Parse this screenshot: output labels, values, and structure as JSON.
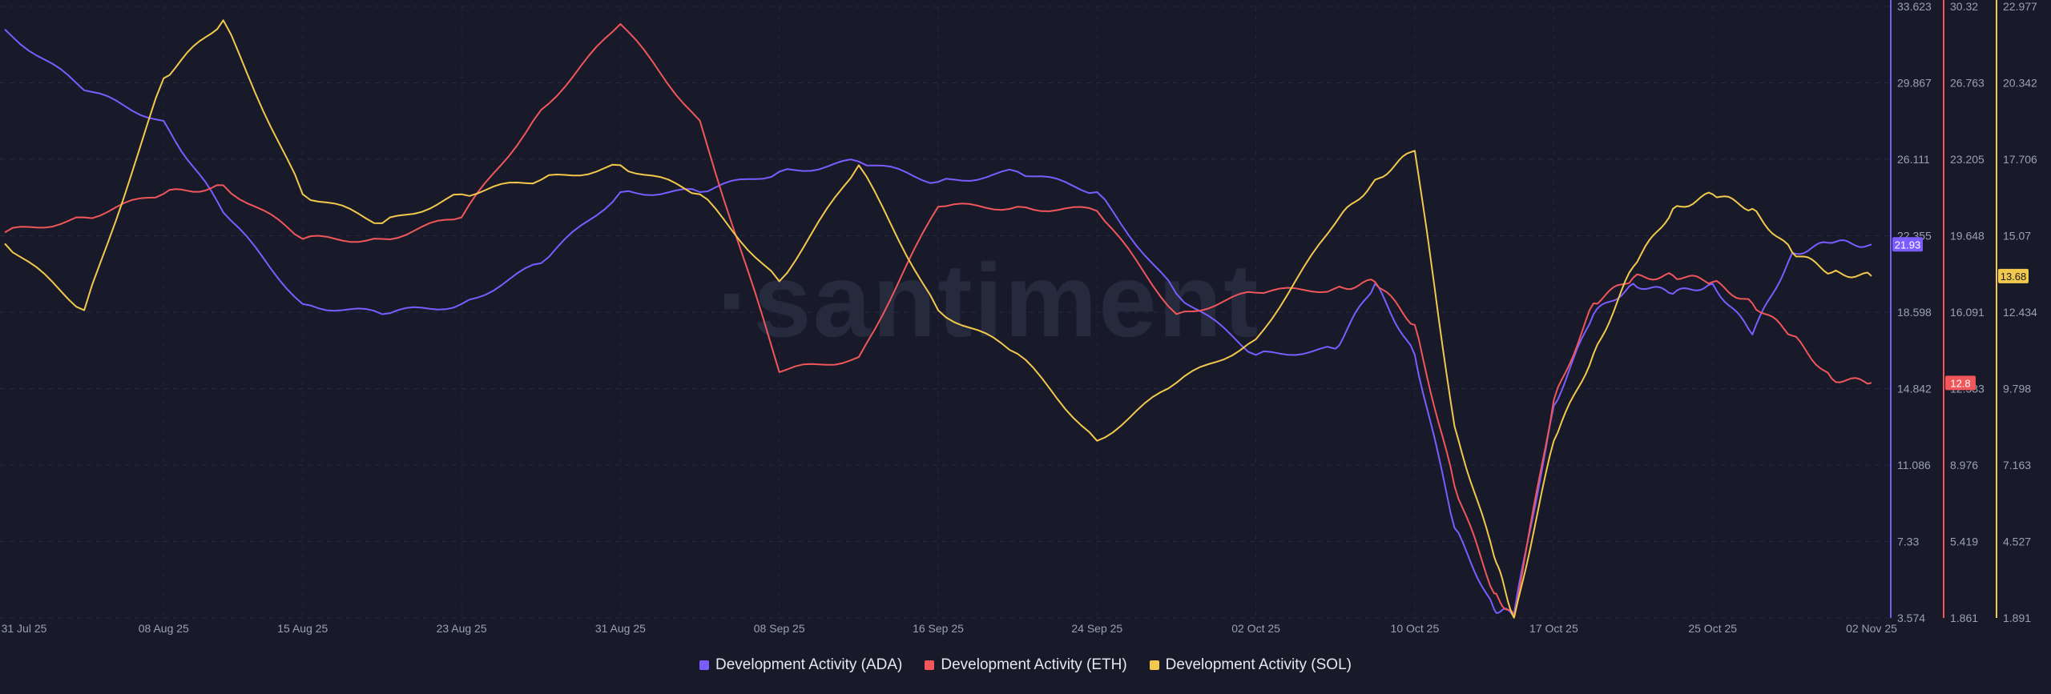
{
  "watermark": "·santiment",
  "chart_data": {
    "type": "line",
    "x_ticks": [
      "31 Jul 25",
      "08 Aug 25",
      "15 Aug 25",
      "23 Aug 25",
      "31 Aug 25",
      "08 Sep 25",
      "16 Sep 25",
      "24 Sep 25",
      "02 Oct 25",
      "10 Oct 25",
      "17 Oct 25",
      "25 Oct 25",
      "02 Nov 25"
    ],
    "x": [
      "2025-07-31",
      "2025-08-04",
      "2025-08-08",
      "2025-08-11",
      "2025-08-15",
      "2025-08-19",
      "2025-08-23",
      "2025-08-27",
      "2025-08-31",
      "2025-09-04",
      "2025-09-08",
      "2025-09-12",
      "2025-09-16",
      "2025-09-20",
      "2025-09-24",
      "2025-09-28",
      "2025-10-02",
      "2025-10-06",
      "2025-10-08",
      "2025-10-10",
      "2025-10-12",
      "2025-10-14",
      "2025-10-15",
      "2025-10-17",
      "2025-10-19",
      "2025-10-21",
      "2025-10-23",
      "2025-10-25",
      "2025-10-27",
      "2025-10-29",
      "2025-10-31",
      "2025-11-02"
    ],
    "axes": [
      {
        "series": "ADA",
        "color": "#7b5cff",
        "ticks": [
          "33.623",
          "29.867",
          "26.111",
          "22.355",
          "18.598",
          "14.842",
          "11.086",
          "7.33",
          "3.574"
        ],
        "range": [
          3.574,
          33.623
        ]
      },
      {
        "series": "ETH",
        "color": "#f0565a",
        "ticks": [
          "30.32",
          "26.763",
          "23.205",
          "19.648",
          "16.091",
          "12.533",
          "8.976",
          "5.419",
          "1.861"
        ],
        "range": [
          1.861,
          30.32
        ]
      },
      {
        "series": "SOL",
        "color": "#f2c94c",
        "ticks": [
          "22.977",
          "20.342",
          "17.706",
          "15.07",
          "12.434",
          "9.798",
          "7.163",
          "4.527",
          "1.891"
        ],
        "range": [
          1.891,
          22.977
        ]
      }
    ],
    "series": [
      {
        "name": "Development Activity (ADA)",
        "key": "ADA",
        "color": "#7b5cff",
        "last_label": "21.93",
        "values": [
          32.5,
          29.5,
          28.0,
          23.5,
          19.0,
          18.5,
          19.0,
          21.0,
          24.5,
          24.5,
          25.5,
          26.0,
          25.0,
          25.5,
          24.5,
          19.5,
          16.5,
          16.8,
          20.0,
          16.5,
          8.0,
          4.0,
          3.8,
          14.0,
          18.5,
          20.0,
          19.5,
          20.0,
          17.5,
          21.5,
          22.0,
          21.93
        ]
      },
      {
        "name": "Development Activity (ETH)",
        "key": "ETH",
        "color": "#f0565a",
        "last_label": "12.8",
        "values": [
          19.8,
          20.5,
          21.6,
          22.0,
          19.5,
          19.5,
          20.5,
          25.5,
          29.5,
          25.0,
          13.3,
          14.0,
          21.0,
          21.0,
          20.8,
          16.0,
          17.0,
          17.2,
          17.5,
          15.5,
          8.0,
          3.0,
          1.9,
          12.0,
          16.5,
          17.7,
          17.8,
          17.5,
          16.5,
          15.0,
          13.0,
          12.8
        ]
      },
      {
        "name": "Development Activity (SOL)",
        "key": "SOL",
        "color": "#f2c94c",
        "last_label": "13.68",
        "values": [
          14.8,
          12.5,
          20.5,
          22.5,
          16.5,
          15.5,
          16.5,
          17.0,
          17.5,
          16.5,
          13.5,
          17.5,
          12.5,
          11.0,
          8.0,
          10.0,
          11.5,
          15.5,
          17.0,
          18.0,
          8.5,
          4.0,
          1.9,
          8.0,
          11.0,
          14.0,
          16.0,
          16.5,
          16.0,
          14.5,
          13.8,
          13.68
        ]
      }
    ],
    "legend_position": "bottom",
    "grid": true
  }
}
